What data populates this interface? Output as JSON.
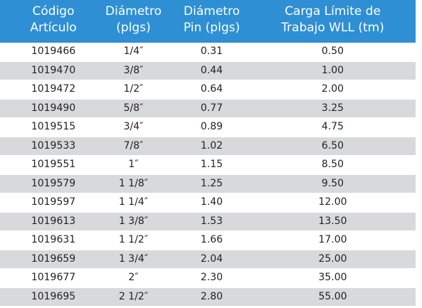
{
  "table": {
    "header": [
      [
        "Código",
        "Artículo"
      ],
      [
        "Diámetro",
        "(plgs)"
      ],
      [
        "Diámetro",
        "Pin (plgs)"
      ],
      [
        "Carga Límite de",
        "Trabajo WLL (tm)"
      ]
    ],
    "rows": [
      [
        "1019466",
        "1/4″",
        "0.31",
        "0.50"
      ],
      [
        "1019470",
        "3/8″",
        "0.44",
        "1.00"
      ],
      [
        "1019472",
        "1/2″",
        "0.64",
        "2.00"
      ],
      [
        "1019490",
        "5/8″",
        "0.77",
        "3.25"
      ],
      [
        "1019515",
        "3/4″",
        "0.89",
        "4.75"
      ],
      [
        "1019533",
        "7/8″",
        "1.02",
        "6.50"
      ],
      [
        "1019551",
        "1″",
        "1.15",
        "8.50"
      ],
      [
        "1019579",
        "1 1/8″",
        "1.25",
        "9.50"
      ],
      [
        "1019597",
        "1 1/4″",
        "1.40",
        "12.00"
      ],
      [
        "1019613",
        "1 3/8″",
        "1.53",
        "13.50"
      ],
      [
        "1019631",
        "1 1/2″",
        "1.66",
        "17.00"
      ],
      [
        "1019659",
        "1 3/4″",
        "2.04",
        "25.00"
      ],
      [
        "1019677",
        "2″",
        "2.30",
        "35.00"
      ],
      [
        "1019695",
        "2 1/2″",
        "2.80",
        "55.00"
      ]
    ]
  }
}
